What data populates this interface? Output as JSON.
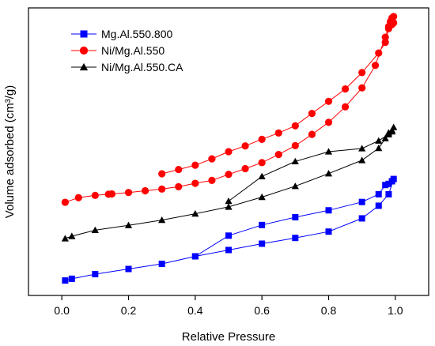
{
  "chart_data": {
    "type": "line",
    "xlabel": "Relative Pressure",
    "ylabel": "Volume adsorbed (cm³/g)",
    "xlim": [
      -0.1,
      1.1
    ],
    "ylim": [
      0,
      1
    ],
    "x_ticks": [
      0.0,
      0.2,
      0.4,
      0.6,
      0.8,
      1.0
    ],
    "x_tick_labels": [
      "0.0",
      "0.2",
      "0.4",
      "0.6",
      "0.8",
      "1.0"
    ],
    "y_tick_labels_shown": false,
    "grid": false,
    "legend_position": "top-left",
    "series": [
      {
        "name": "Mg.Al.550.800",
        "color": "#0000ff",
        "marker": "square",
        "points": [
          [
            0.01,
            0.052
          ],
          [
            0.03,
            0.058
          ],
          [
            0.1,
            0.074
          ],
          [
            0.2,
            0.092
          ],
          [
            0.3,
            0.11
          ],
          [
            0.4,
            0.136
          ],
          [
            0.5,
            0.208
          ],
          [
            0.6,
            0.245
          ],
          [
            0.7,
            0.272
          ],
          [
            0.8,
            0.296
          ],
          [
            0.9,
            0.325
          ],
          [
            0.95,
            0.352
          ],
          [
            0.97,
            0.384
          ],
          [
            0.98,
            0.388
          ],
          [
            0.99,
            0.397
          ],
          [
            0.995,
            0.405
          ],
          [
            0.98,
            0.352
          ],
          [
            0.95,
            0.312
          ],
          [
            0.9,
            0.268
          ],
          [
            0.8,
            0.222
          ],
          [
            0.7,
            0.2
          ],
          [
            0.6,
            0.18
          ],
          [
            0.5,
            0.158
          ],
          [
            0.4,
            0.136
          ]
        ]
      },
      {
        "name": "Ni/Mg.Al.550",
        "color": "#ff0000",
        "marker": "circle",
        "points": [
          [
            0.01,
            0.324
          ],
          [
            0.05,
            0.34
          ],
          [
            0.1,
            0.348
          ],
          [
            0.14,
            0.352
          ],
          [
            0.15,
            0.353
          ],
          [
            0.2,
            0.358
          ],
          [
            0.25,
            0.364
          ],
          [
            0.3,
            0.37
          ],
          [
            0.35,
            0.378
          ],
          [
            0.4,
            0.39
          ],
          [
            0.45,
            0.4
          ],
          [
            0.5,
            0.421
          ],
          [
            0.55,
            0.441
          ],
          [
            0.6,
            0.462
          ],
          [
            0.65,
            0.49
          ],
          [
            0.7,
            0.521
          ],
          [
            0.75,
            0.56
          ],
          [
            0.8,
            0.602
          ],
          [
            0.85,
            0.656
          ],
          [
            0.9,
            0.722
          ],
          [
            0.94,
            0.8
          ],
          [
            0.97,
            0.898
          ],
          [
            0.98,
            0.935
          ],
          [
            0.985,
            0.952
          ],
          [
            0.99,
            0.965
          ],
          [
            0.995,
            0.97
          ],
          [
            0.995,
            0.948
          ],
          [
            0.99,
            0.942
          ],
          [
            0.98,
            0.928
          ],
          [
            0.97,
            0.88
          ],
          [
            0.95,
            0.843
          ],
          [
            0.9,
            0.775
          ],
          [
            0.85,
            0.718
          ],
          [
            0.8,
            0.675
          ],
          [
            0.75,
            0.633
          ],
          [
            0.7,
            0.59
          ],
          [
            0.65,
            0.565
          ],
          [
            0.6,
            0.543
          ],
          [
            0.55,
            0.52
          ],
          [
            0.5,
            0.5
          ],
          [
            0.45,
            0.475
          ],
          [
            0.4,
            0.453
          ],
          [
            0.35,
            0.438
          ],
          [
            0.3,
            0.423
          ]
        ]
      },
      {
        "name": "Ni/Mg.Al.550.CA",
        "color": "#000000",
        "marker": "triangle",
        "points": [
          [
            0.01,
            0.198
          ],
          [
            0.03,
            0.206
          ],
          [
            0.1,
            0.227
          ],
          [
            0.2,
            0.244
          ],
          [
            0.3,
            0.262
          ],
          [
            0.4,
            0.284
          ],
          [
            0.5,
            0.308
          ],
          [
            0.6,
            0.342
          ],
          [
            0.7,
            0.38
          ],
          [
            0.8,
            0.424
          ],
          [
            0.9,
            0.47
          ],
          [
            0.95,
            0.512
          ],
          [
            0.97,
            0.546
          ],
          [
            0.98,
            0.566
          ],
          [
            0.99,
            0.574
          ],
          [
            0.995,
            0.585
          ],
          [
            0.99,
            0.57
          ],
          [
            0.98,
            0.56
          ],
          [
            0.95,
            0.538
          ],
          [
            0.9,
            0.511
          ],
          [
            0.8,
            0.5
          ],
          [
            0.7,
            0.466
          ],
          [
            0.6,
            0.414
          ],
          [
            0.5,
            0.328
          ]
        ]
      }
    ]
  }
}
